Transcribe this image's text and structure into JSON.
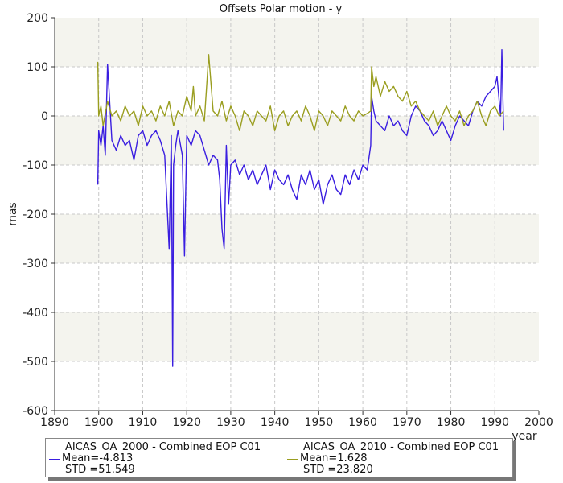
{
  "chart_data": {
    "type": "line",
    "title": "Offsets Polar motion - y",
    "xlabel": "year",
    "ylabel": "mas",
    "xlim": [
      1890,
      2000
    ],
    "ylim": [
      -600,
      200
    ],
    "x_ticks": [
      1890,
      1900,
      1910,
      1920,
      1930,
      1940,
      1950,
      1960,
      1970,
      1980,
      1990,
      2000
    ],
    "y_ticks": [
      200,
      100,
      0,
      -100,
      -200,
      -300,
      -400,
      -500,
      -600
    ],
    "grid": true,
    "legend_position": "bottom",
    "series": [
      {
        "name": "AICAS_OA_2000 - Combined EOP C01",
        "color": "#3a1ee0",
        "stats": {
          "mean": "Mean=-4.813",
          "std": "STD =51.549"
        },
        "x": [
          1899.8,
          1900.0,
          1900.5,
          1901.0,
          1901.5,
          1902.0,
          1903.0,
          1904.0,
          1905.0,
          1906.0,
          1907.0,
          1908.0,
          1909.0,
          1910.0,
          1911.0,
          1912.0,
          1913.0,
          1914.0,
          1915.0,
          1916.0,
          1916.5,
          1916.8,
          1917.0,
          1917.5,
          1918.0,
          1919.0,
          1919.5,
          1920.0,
          1921.0,
          1922.0,
          1923.0,
          1924.0,
          1925.0,
          1926.0,
          1927.0,
          1927.5,
          1928.0,
          1928.5,
          1929.0,
          1929.5,
          1930.0,
          1931.0,
          1932.0,
          1933.0,
          1934.0,
          1935.0,
          1936.0,
          1937.0,
          1938.0,
          1939.0,
          1940.0,
          1941.0,
          1942.0,
          1943.0,
          1944.0,
          1945.0,
          1946.0,
          1947.0,
          1948.0,
          1949.0,
          1950.0,
          1951.0,
          1952.0,
          1953.0,
          1954.0,
          1955.0,
          1956.0,
          1957.0,
          1958.0,
          1959.0,
          1960.0,
          1961.0,
          1961.8,
          1962.0,
          1962.5,
          1963.0,
          1964.0,
          1965.0,
          1966.0,
          1967.0,
          1968.0,
          1969.0,
          1970.0,
          1971.0,
          1972.0,
          1973.0,
          1974.0,
          1975.0,
          1976.0,
          1977.0,
          1978.0,
          1979.0,
          1980.0,
          1981.0,
          1982.0,
          1983.0,
          1984.0,
          1985.0,
          1986.0,
          1987.0,
          1988.0,
          1989.0,
          1990.0,
          1990.5,
          1991.0,
          1991.3,
          1991.6,
          1992.0
        ],
        "y": [
          -140,
          -30,
          -60,
          -20,
          -80,
          105,
          -50,
          -70,
          -40,
          -60,
          -50,
          -90,
          -40,
          -30,
          -60,
          -40,
          -30,
          -50,
          -80,
          -270,
          -40,
          -510,
          -100,
          -60,
          -30,
          -80,
          -285,
          -40,
          -60,
          -30,
          -40,
          -70,
          -100,
          -80,
          -90,
          -130,
          -230,
          -270,
          -60,
          -180,
          -100,
          -90,
          -120,
          -100,
          -130,
          -110,
          -140,
          -120,
          -100,
          -150,
          -110,
          -130,
          -140,
          -120,
          -150,
          -170,
          -120,
          -140,
          -110,
          -150,
          -130,
          -180,
          -140,
          -120,
          -150,
          -160,
          -120,
          -140,
          -110,
          -130,
          -100,
          -110,
          -60,
          40,
          10,
          -10,
          -20,
          -30,
          0,
          -20,
          -10,
          -30,
          -40,
          0,
          20,
          10,
          -10,
          -20,
          -40,
          -30,
          -10,
          -30,
          -50,
          -20,
          0,
          -10,
          -20,
          10,
          30,
          20,
          40,
          50,
          60,
          80,
          30,
          0,
          135,
          -30
        ]
      },
      {
        "name": "AICAS_OA_2010 - Combined EOP C01",
        "color": "#9a9e20",
        "stats": {
          "mean": "Mean=1.628",
          "std": "STD =23.820"
        },
        "x": [
          1899.8,
          1900.0,
          1900.5,
          1901.0,
          1902.0,
          1903.0,
          1904.0,
          1905.0,
          1906.0,
          1907.0,
          1908.0,
          1909.0,
          1910.0,
          1911.0,
          1912.0,
          1913.0,
          1914.0,
          1915.0,
          1916.0,
          1917.0,
          1918.0,
          1919.0,
          1920.0,
          1921.0,
          1921.5,
          1922.0,
          1923.0,
          1924.0,
          1925.0,
          1926.0,
          1927.0,
          1928.0,
          1929.0,
          1930.0,
          1931.0,
          1932.0,
          1933.0,
          1934.0,
          1935.0,
          1936.0,
          1937.0,
          1938.0,
          1939.0,
          1940.0,
          1941.0,
          1942.0,
          1943.0,
          1944.0,
          1945.0,
          1946.0,
          1947.0,
          1948.0,
          1949.0,
          1950.0,
          1951.0,
          1952.0,
          1953.0,
          1954.0,
          1955.0,
          1956.0,
          1957.0,
          1958.0,
          1959.0,
          1960.0,
          1961.0,
          1961.8,
          1962.0,
          1962.5,
          1963.0,
          1964.0,
          1965.0,
          1966.0,
          1967.0,
          1968.0,
          1969.0,
          1970.0,
          1971.0,
          1972.0,
          1973.0,
          1974.0,
          1975.0,
          1976.0,
          1977.0,
          1978.0,
          1979.0,
          1980.0,
          1981.0,
          1982.0,
          1983.0,
          1984.0,
          1985.0,
          1986.0,
          1987.0,
          1988.0,
          1989.0,
          1990.0,
          1991.0,
          1992.0
        ],
        "y": [
          110,
          0,
          20,
          -20,
          30,
          0,
          10,
          -10,
          20,
          0,
          10,
          -20,
          20,
          0,
          10,
          -10,
          20,
          0,
          30,
          -20,
          10,
          0,
          40,
          10,
          60,
          0,
          20,
          -10,
          125,
          10,
          0,
          30,
          -10,
          20,
          0,
          -30,
          10,
          0,
          -20,
          10,
          0,
          -10,
          20,
          -30,
          0,
          10,
          -20,
          0,
          10,
          -10,
          20,
          0,
          -30,
          10,
          0,
          -20,
          10,
          0,
          -10,
          20,
          0,
          -10,
          10,
          0,
          5,
          10,
          100,
          60,
          80,
          40,
          70,
          50,
          60,
          40,
          30,
          50,
          20,
          30,
          10,
          0,
          -10,
          10,
          -20,
          0,
          20,
          0,
          -10,
          10,
          -20,
          0,
          10,
          30,
          0,
          -20,
          10,
          20,
          0,
          10
        ]
      }
    ]
  }
}
